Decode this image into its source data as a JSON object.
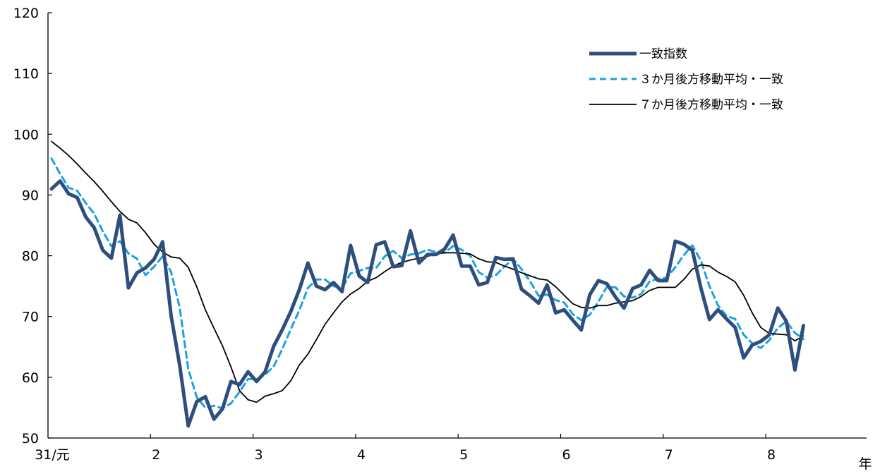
{
  "chart_data": {
    "type": "line",
    "title": "",
    "xlabel": "年",
    "ylabel": "",
    "ylim": [
      50,
      120
    ],
    "y_ticks": [
      50,
      60,
      70,
      80,
      90,
      100,
      110,
      120
    ],
    "x_tick_labels": [
      "31/元",
      "2",
      "3",
      "4",
      "5",
      "6",
      "7",
      "8"
    ],
    "grid": false,
    "legend_position": "top-right",
    "x_start": "2019-01",
    "x_step": "month",
    "series": [
      {
        "name": "一致指数",
        "style": "thick-solid",
        "color": "#2e4e7e",
        "values": [
          91.0,
          92.3,
          90.2,
          89.6,
          86.4,
          84.6,
          80.9,
          79.6,
          86.7,
          74.7,
          77.2,
          78.0,
          79.4,
          82.3,
          70.1,
          62.0,
          52.0,
          56.0,
          56.8,
          53.1,
          54.8,
          59.3,
          58.8,
          60.9,
          59.3,
          60.9,
          65.1,
          67.8,
          70.8,
          74.4,
          78.8,
          75.0,
          74.4,
          75.6,
          74.1,
          81.7,
          76.7,
          75.6,
          81.8,
          82.3,
          78.2,
          78.4,
          84.1,
          78.8,
          80.2,
          80.2,
          81.1,
          83.4,
          78.3,
          78.3,
          75.2,
          75.6,
          79.7,
          79.4,
          79.5,
          74.5,
          73.4,
          72.2,
          75.2,
          70.6,
          71.1,
          69.4,
          67.8,
          73.6,
          75.9,
          75.4,
          73.2,
          71.4,
          74.6,
          75.2,
          77.6,
          75.9,
          75.9,
          82.4,
          81.9,
          80.9,
          74.7,
          69.5,
          71.1,
          69.6,
          68.2,
          63.2,
          65.3,
          65.9,
          67.0,
          71.4,
          69.2,
          61.2,
          68.5
        ]
      },
      {
        "name": "３か月後方移動平均・一致",
        "style": "dashed",
        "color": "#1aa3e0",
        "values": [
          96.0,
          93.5,
          91.2,
          90.7,
          88.7,
          86.9,
          84.0,
          81.6,
          82.4,
          80.4,
          79.5,
          76.8,
          78.2,
          79.9,
          77.3,
          71.5,
          61.4,
          56.7,
          55.0,
          55.3,
          54.9,
          55.7,
          57.6,
          59.7,
          59.7,
          60.4,
          61.8,
          64.6,
          67.9,
          71.0,
          74.7,
          76.1,
          76.1,
          75.0,
          74.7,
          77.1,
          77.5,
          78.0,
          78.0,
          79.9,
          80.8,
          79.6,
          80.2,
          80.4,
          81.0,
          80.6,
          80.5,
          81.6,
          81.0,
          80.0,
          77.3,
          76.4,
          76.8,
          78.2,
          79.5,
          77.8,
          75.8,
          73.4,
          73.6,
          72.7,
          72.3,
          70.4,
          69.4,
          70.3,
          72.4,
          74.9,
          74.8,
          73.3,
          73.1,
          73.7,
          75.8,
          76.2,
          76.4,
          78.1,
          80.1,
          81.7,
          79.2,
          75.0,
          71.8,
          70.1,
          69.6,
          67.0,
          65.6,
          64.8,
          66.1,
          68.1,
          69.2,
          67.3,
          66.3
        ]
      },
      {
        "name": "７か月後方移動平均・一致",
        "style": "thin-solid",
        "color": "#000000",
        "values": [
          98.8,
          97.7,
          96.5,
          95.1,
          93.6,
          92.2,
          90.6,
          88.9,
          87.3,
          86.0,
          85.4,
          83.8,
          81.9,
          80.6,
          79.8,
          79.6,
          78.1,
          74.9,
          71.1,
          68.1,
          65.2,
          61.7,
          57.8,
          56.3,
          55.9,
          56.9,
          57.3,
          57.8,
          59.4,
          62.0,
          63.8,
          66.2,
          68.7,
          70.6,
          72.4,
          73.7,
          74.6,
          75.8,
          76.4,
          77.4,
          78.3,
          78.9,
          79.3,
          79.6,
          79.9,
          80.3,
          80.5,
          80.5,
          80.4,
          80.3,
          79.5,
          79.0,
          78.9,
          78.3,
          77.8,
          77.2,
          76.7,
          76.2,
          76.0,
          74.9,
          73.5,
          72.1,
          71.5,
          71.4,
          71.8,
          71.8,
          72.2,
          72.4,
          72.6,
          73.3,
          74.3,
          74.8,
          74.8,
          74.8,
          76.1,
          77.8,
          78.5,
          78.3,
          77.3,
          76.6,
          75.7,
          73.5,
          70.6,
          68.2,
          67.2,
          67.1,
          67.0,
          66.0,
          66.8
        ]
      }
    ]
  }
}
